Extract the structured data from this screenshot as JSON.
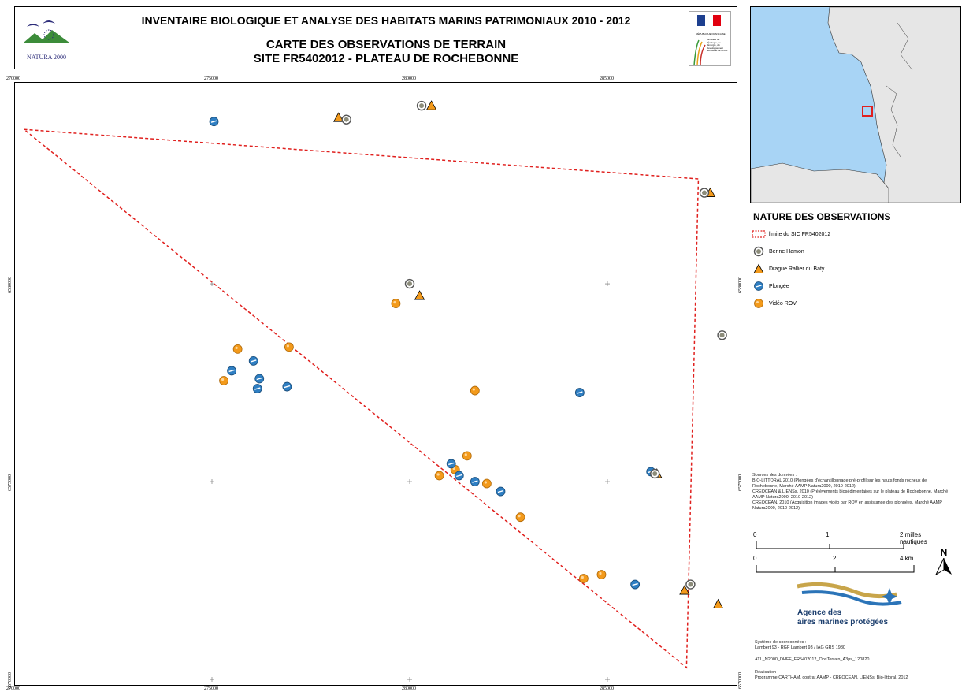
{
  "header": {
    "title_line1": "INVENTAIRE BIOLOGIQUE ET ANALYSE DES HABITATS MARINS PATRIMONIAUX 2010 - 2012",
    "title_line2": "CARTE DES OBSERVATIONS DE TERRAIN",
    "title_line3": "SITE FR5402012 - PLATEAU DE ROCHEBONNE",
    "logo_natura": "NATURA 2000",
    "logo_republique": "RÉPUBLIQUE FRANÇAISE",
    "logo_ministere": "Ministère de l'Écologie, de l'Énergie, du Développement durable et de la Mer"
  },
  "axis": {
    "x_ticks": [
      "270000",
      "275000",
      "280000",
      "285000"
    ],
    "y_ticks": [
      "6580000",
      "6575000",
      "6570000"
    ]
  },
  "legend": {
    "title": "NATURE DES OBSERVATIONS",
    "items": [
      {
        "label": "limite du SIC FR5402012",
        "symbol": "dashed-boundary"
      },
      {
        "label": "Benne Hamon",
        "symbol": "grab-icon"
      },
      {
        "label": "Drague Rallier du Baty",
        "symbol": "dredge-icon"
      },
      {
        "label": "Plongée",
        "symbol": "dive-icon"
      },
      {
        "label": "Vidéo ROV",
        "symbol": "rov-icon"
      }
    ]
  },
  "colors": {
    "boundary": "#e0201e",
    "grab": "#8c8c7a",
    "dredge": "#f39a1b",
    "dive": "#2f7fc3",
    "rov": "#f39a1b",
    "sea": "#a8d4f5",
    "land": "#e6e6e6",
    "inset_frame": "#e0201e"
  },
  "sources": {
    "heading": "Sources des données :",
    "lines": [
      "BIO-LITTORAL 2010 (Plongées d'échantillonnage pré-profil sur les hauts fonds rocheux de",
      "Rochebonne, Marché AAMP Natura2000, 2010-2012)",
      "CREOCEAN & LIENSs, 2010 (Prélèvements biosédimentaires sur le plateau de Rochebonne, Marché",
      "AAMP Natura2000, 2010-2012)",
      "CREOCEAN, 2010 (Acquisition images vidéo par ROV en assistance des plongées, Marché AAMP",
      "Natura2000, 2010-2012)"
    ]
  },
  "scale": {
    "nm_labels": [
      "0",
      "1",
      "2 milles nautiques"
    ],
    "km_labels": [
      "0",
      "2",
      "4 km"
    ],
    "north": "N"
  },
  "agency": {
    "line1": "Agence des",
    "line2": "aires marines protégées"
  },
  "footer": {
    "crs_heading": "Système de coordonnées :",
    "crs": "Lambert 93 - RGF Lambert 93 / IAG GRS 1980",
    "file": "ATL_N2000_DHFF_FR5402012_ObsTerrain_A3ps_120820",
    "realisation_heading": "Réalisation :",
    "realisation": "Programme CARTHAM, contrat AAMP - CREOCEAN, LIENSs, Bio-littoral, 2012"
  },
  "map_data": {
    "boundary": [
      [
        270250,
        6583900
      ],
      [
        287300,
        6582650
      ],
      [
        287000,
        6570300
      ],
      [
        270250,
        6583900
      ]
    ],
    "grab": [
      [
        278400,
        6584150
      ],
      [
        280300,
        6584500
      ],
      [
        287450,
        6582300
      ],
      [
        280000,
        6580000
      ],
      [
        287900,
        6578700
      ],
      [
        286200,
        6575200
      ],
      [
        287100,
        6572400
      ]
    ],
    "dredge": [
      [
        278200,
        6584200
      ],
      [
        280550,
        6584500
      ],
      [
        287600,
        6582300
      ],
      [
        280250,
        6579700
      ],
      [
        286250,
        6575200
      ],
      [
        286950,
        6572250
      ],
      [
        287800,
        6571900
      ]
    ],
    "dive": [
      [
        275050,
        6584100
      ],
      [
        275500,
        6577800
      ],
      [
        276050,
        6578050
      ],
      [
        276200,
        6577600
      ],
      [
        276150,
        6577350
      ],
      [
        276900,
        6577400
      ],
      [
        284300,
        6577250
      ],
      [
        286100,
        6575250
      ],
      [
        281050,
        6575450
      ],
      [
        281250,
        6575150
      ],
      [
        281650,
        6575000
      ],
      [
        282300,
        6574750
      ],
      [
        285700,
        6572400
      ]
    ],
    "rov": [
      [
        279650,
        6579500
      ],
      [
        275650,
        6578350
      ],
      [
        276950,
        6578400
      ],
      [
        275300,
        6577550
      ],
      [
        281650,
        6577300
      ],
      [
        281450,
        6575650
      ],
      [
        280750,
        6575150
      ],
      [
        281150,
        6575300
      ],
      [
        281950,
        6574950
      ],
      [
        282800,
        6574100
      ],
      [
        284400,
        6572550
      ],
      [
        284850,
        6572650
      ]
    ]
  }
}
